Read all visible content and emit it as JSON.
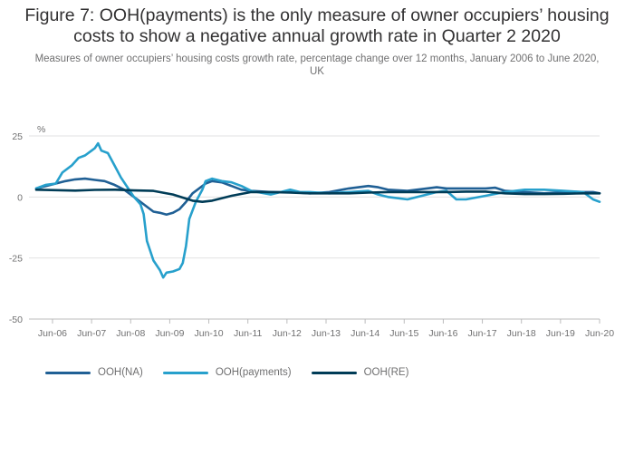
{
  "title": "Figure 7: OOH(payments) is the only measure of owner occupiers’ housing costs to show a negative annual growth rate in Quarter 2 2020",
  "subtitle": "Measures of owner occupiers’ housing costs growth rate, percentage change over 12 months, January 2006 to June 2020, UK",
  "chart_data": {
    "type": "line",
    "title": "Figure 7: OOH(payments) is the only measure of owner occupiers’ housing costs to show a negative annual growth rate in Quarter 2 2020",
    "subtitle": "Measures of owner occupiers’ housing costs growth rate, percentage change over 12 months, January 2006 to June 2020, UK",
    "ylabel": "%",
    "xlabel": "",
    "ylim": [
      -50,
      25
    ],
    "yticks": [
      25,
      0,
      -25,
      -50
    ],
    "x_start": "Jan-06",
    "x_end": "Jun-20",
    "x_tick_labels": [
      "Jun-06",
      "Jun-07",
      "Jun-08",
      "Jun-09",
      "Jun-10",
      "Jun-11",
      "Jun-12",
      "Jun-13",
      "Jun-14",
      "Jun-15",
      "Jun-16",
      "Jun-17",
      "Jun-18",
      "Jun-19",
      "Jun-20"
    ],
    "grid": "horizontal",
    "legend_position": "bottom-left",
    "series": [
      {
        "name": "OOH(NA)",
        "color": "#206095",
        "points": [
          [
            "Jan-06",
            3.5
          ],
          [
            "Apr-06",
            4.5
          ],
          [
            "Jul-06",
            5.5
          ],
          [
            "Oct-06",
            6.5
          ],
          [
            "Jan-07",
            7.2
          ],
          [
            "Apr-07",
            7.5
          ],
          [
            "Jul-07",
            7.0
          ],
          [
            "Oct-07",
            6.5
          ],
          [
            "Jan-08",
            5.0
          ],
          [
            "Apr-08",
            3.0
          ],
          [
            "Jul-08",
            0.0
          ],
          [
            "Oct-08",
            -3.0
          ],
          [
            "Jan-09",
            -6.0
          ],
          [
            "Mar-09",
            -6.5
          ],
          [
            "May-09",
            -7.2
          ],
          [
            "Jul-09",
            -6.5
          ],
          [
            "Sep-09",
            -5.0
          ],
          [
            "Nov-09",
            -2.0
          ],
          [
            "Jan-10",
            1.5
          ],
          [
            "Mar-10",
            3.5
          ],
          [
            "May-10",
            5.5
          ],
          [
            "Jul-10",
            6.5
          ],
          [
            "Oct-10",
            6.0
          ],
          [
            "Jan-11",
            4.5
          ],
          [
            "Apr-11",
            3.0
          ],
          [
            "Jul-11",
            2.5
          ],
          [
            "Jan-12",
            2.0
          ],
          [
            "Jul-12",
            2.0
          ],
          [
            "Jan-13",
            1.5
          ],
          [
            "Jul-13",
            2.0
          ],
          [
            "Jan-14",
            3.5
          ],
          [
            "Jul-14",
            4.5
          ],
          [
            "Oct-14",
            4.0
          ],
          [
            "Jan-15",
            3.0
          ],
          [
            "Jul-15",
            2.5
          ],
          [
            "Jan-16",
            3.5
          ],
          [
            "Apr-16",
            4.0
          ],
          [
            "Jul-16",
            3.5
          ],
          [
            "Jan-17",
            3.5
          ],
          [
            "Jul-17",
            3.5
          ],
          [
            "Oct-17",
            3.8
          ],
          [
            "Jan-18",
            2.5
          ],
          [
            "Jul-18",
            2.0
          ],
          [
            "Jan-19",
            1.5
          ],
          [
            "Jul-19",
            2.0
          ],
          [
            "Jan-20",
            2.0
          ],
          [
            "Apr-20",
            2.0
          ],
          [
            "Jun-20",
            1.5
          ]
        ]
      },
      {
        "name": "OOH(payments)",
        "color": "#27a0cc",
        "points": [
          [
            "Jan-06",
            3.5
          ],
          [
            "Apr-06",
            5.0
          ],
          [
            "Jul-06",
            5.5
          ],
          [
            "Sep-06",
            10.0
          ],
          [
            "Dec-06",
            13.0
          ],
          [
            "Feb-07",
            16.0
          ],
          [
            "Apr-07",
            17.0
          ],
          [
            "Jun-07",
            19.0
          ],
          [
            "Jul-07",
            20.0
          ],
          [
            "Aug-07",
            22.0
          ],
          [
            "Sep-07",
            19.0
          ],
          [
            "Nov-07",
            18.0
          ],
          [
            "Jan-08",
            13.0
          ],
          [
            "Mar-08",
            8.0
          ],
          [
            "May-08",
            4.0
          ],
          [
            "Jul-08",
            0.0
          ],
          [
            "Sep-08",
            -3.0
          ],
          [
            "Oct-08",
            -7.0
          ],
          [
            "Nov-08",
            -18.0
          ],
          [
            "Jan-09",
            -26.0
          ],
          [
            "Mar-09",
            -30.0
          ],
          [
            "Apr-09",
            -33.0
          ],
          [
            "May-09",
            -31.0
          ],
          [
            "Jul-09",
            -30.5
          ],
          [
            "Sep-09",
            -29.5
          ],
          [
            "Oct-09",
            -27.0
          ],
          [
            "Nov-09",
            -20.0
          ],
          [
            "Dec-09",
            -9.0
          ],
          [
            "Feb-10",
            -2.0
          ],
          [
            "Apr-10",
            3.0
          ],
          [
            "May-10",
            6.5
          ],
          [
            "Jul-10",
            7.5
          ],
          [
            "Oct-10",
            6.5
          ],
          [
            "Jan-11",
            6.0
          ],
          [
            "Apr-11",
            4.5
          ],
          [
            "Jul-11",
            2.5
          ],
          [
            "Jan-12",
            1.0
          ],
          [
            "Jul-12",
            3.0
          ],
          [
            "Oct-12",
            2.0
          ],
          [
            "Jan-13",
            2.0
          ],
          [
            "Jul-13",
            1.5
          ],
          [
            "Jan-14",
            2.0
          ],
          [
            "Jul-14",
            2.5
          ],
          [
            "Oct-14",
            1.0
          ],
          [
            "Jan-15",
            0.0
          ],
          [
            "Jul-15",
            -1.0
          ],
          [
            "Jan-16",
            1.0
          ],
          [
            "Apr-16",
            2.0
          ],
          [
            "Jul-16",
            2.5
          ],
          [
            "Oct-16",
            -1.0
          ],
          [
            "Jan-17",
            -1.0
          ],
          [
            "Jul-17",
            0.5
          ],
          [
            "Jan-18",
            2.0
          ],
          [
            "Jul-18",
            3.0
          ],
          [
            "Jan-19",
            3.0
          ],
          [
            "Jul-19",
            2.5
          ],
          [
            "Jan-20",
            2.0
          ],
          [
            "Apr-20",
            -1.0
          ],
          [
            "Jun-20",
            -2.0
          ]
        ]
      },
      {
        "name": "OOH(RE)",
        "color": "#003c57",
        "points": [
          [
            "Jan-06",
            3.0
          ],
          [
            "Jul-06",
            2.8
          ],
          [
            "Jan-07",
            2.6
          ],
          [
            "Jul-07",
            2.9
          ],
          [
            "Jan-08",
            3.0
          ],
          [
            "Jul-08",
            2.7
          ],
          [
            "Jan-09",
            2.5
          ],
          [
            "Jul-09",
            1.0
          ],
          [
            "Jan-10",
            -1.5
          ],
          [
            "Apr-10",
            -2.0
          ],
          [
            "Jul-10",
            -1.5
          ],
          [
            "Jan-11",
            0.5
          ],
          [
            "Jul-11",
            2.0
          ],
          [
            "Jan-12",
            2.0
          ],
          [
            "Jul-12",
            1.8
          ],
          [
            "Jan-13",
            1.5
          ],
          [
            "Jul-13",
            1.5
          ],
          [
            "Jan-14",
            1.5
          ],
          [
            "Jul-14",
            1.8
          ],
          [
            "Jan-15",
            2.0
          ],
          [
            "Jul-15",
            2.0
          ],
          [
            "Jan-16",
            2.0
          ],
          [
            "Jul-16",
            2.0
          ],
          [
            "Jan-17",
            2.2
          ],
          [
            "Jul-17",
            2.2
          ],
          [
            "Jan-18",
            1.5
          ],
          [
            "Jul-18",
            1.2
          ],
          [
            "Jan-19",
            1.2
          ],
          [
            "Jul-19",
            1.3
          ],
          [
            "Jan-20",
            1.5
          ],
          [
            "Jun-20",
            1.5
          ]
        ]
      }
    ]
  }
}
